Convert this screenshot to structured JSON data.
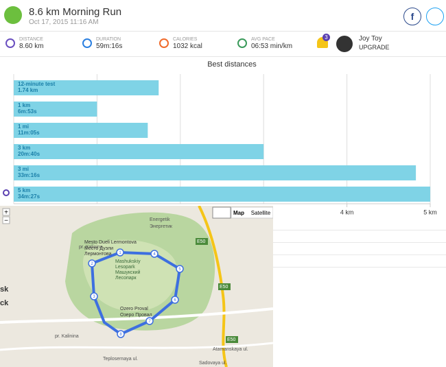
{
  "header": {
    "title": "8.6 km Morning Run",
    "date": "Oct 17, 2015 11:16 AM"
  },
  "stats": [
    {
      "label": "DISTANCE",
      "value": "8.60 km"
    },
    {
      "label": "DURATION",
      "value": "59m:16s"
    },
    {
      "label": "CALORIES",
      "value": "1032 kcal"
    },
    {
      "label": "AVG PACE",
      "value": "06:53 min/km"
    }
  ],
  "user": {
    "notifications": "3",
    "name": "Joy Toy",
    "action": "UPGRADE"
  },
  "chart_data": {
    "type": "bar",
    "orientation": "horizontal",
    "title": "Best distances",
    "categories": [
      "12-minute test",
      "1 km",
      "1 mi",
      "3 km",
      "3 mi",
      "5 km"
    ],
    "values": [
      1.74,
      1,
      1.609,
      3,
      4.828,
      5
    ],
    "labels": [
      "1.74 km",
      "6m:53s",
      "11m:05s",
      "20m:40s",
      "33m:16s",
      "34m:27s"
    ],
    "color": "#7fd3e6",
    "xlim": [
      0,
      5
    ],
    "xticks": [
      {
        "value": 4,
        "label": "4 km"
      },
      {
        "value": 5,
        "label": "5 km"
      }
    ],
    "xgrid": [
      0,
      1,
      2,
      3,
      4,
      5
    ]
  },
  "map": {
    "zoom_in": "+",
    "zoom_out": "−",
    "types": [
      "Map",
      "Satellite"
    ],
    "labels": [
      "Energetik",
      "Энергетик",
      "Mesto Dueli Lermontova",
      "Место Дуэли",
      "Лермонтова",
      "Mashukskiy",
      "Lesopark",
      "Машукский",
      "Лесопарк",
      "Ozero Proval",
      "Озеро Провал",
      "E50",
      "E50",
      "E50",
      "Atamanskaya ul.",
      "Teplosernaya ul.",
      "Sadovaya ul.",
      "pr. Kalinina",
      "pr. Kalinina",
      "sk",
      "ck"
    ],
    "markers": [
      "1",
      "2",
      "3",
      "4",
      "5",
      "6",
      "7",
      "8"
    ]
  }
}
